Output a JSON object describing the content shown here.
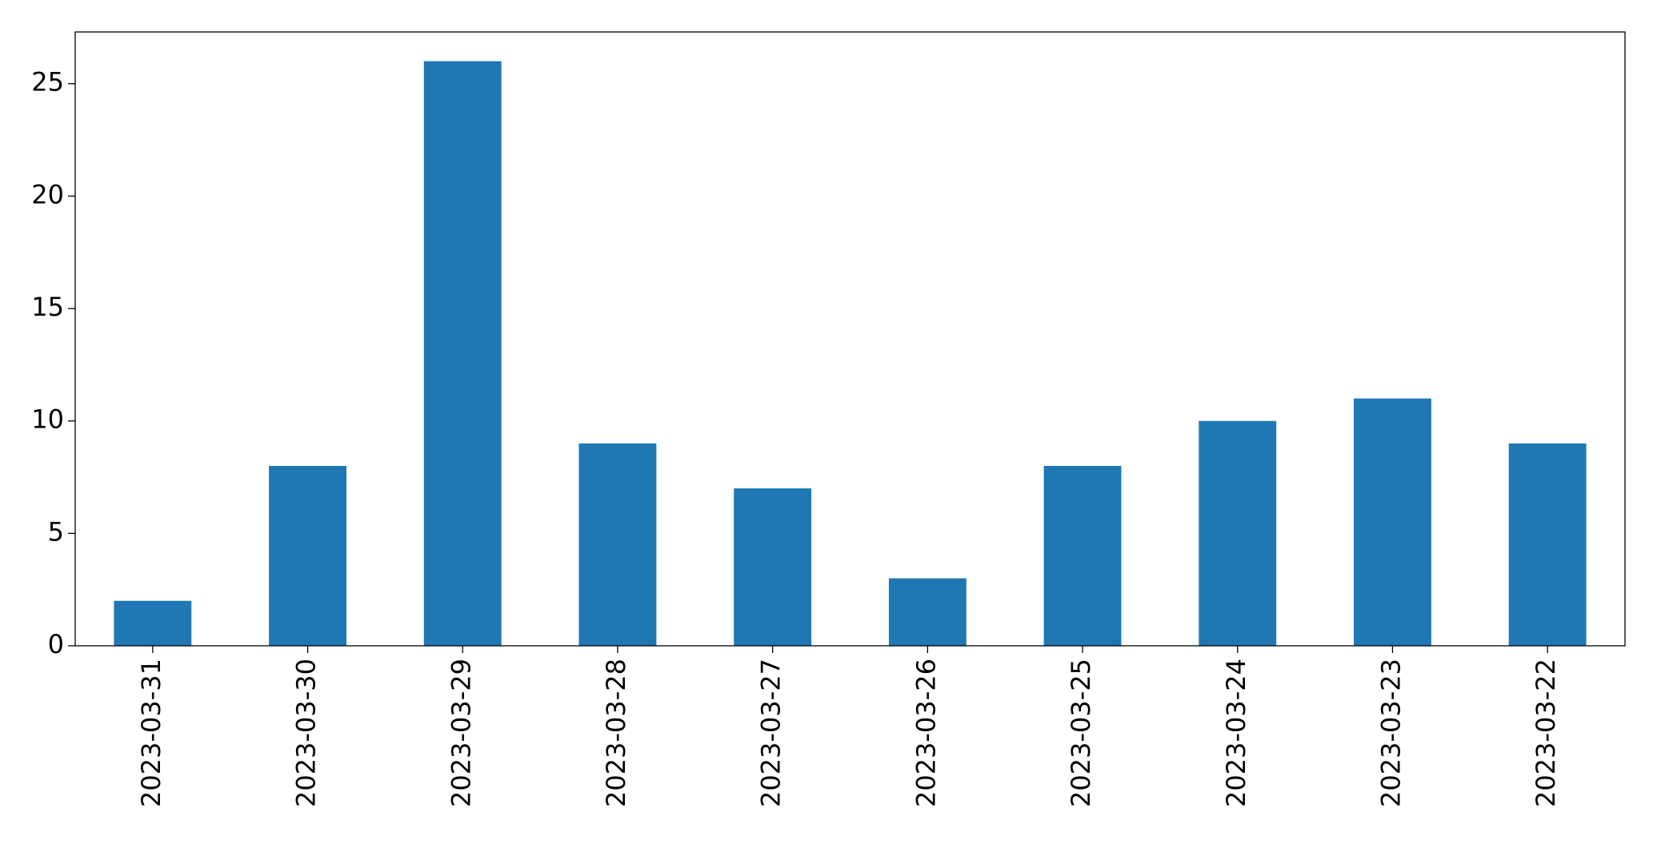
{
  "chart_data": {
    "type": "bar",
    "categories": [
      "2023-03-31",
      "2023-03-30",
      "2023-03-29",
      "2023-03-28",
      "2023-03-27",
      "2023-03-26",
      "2023-03-25",
      "2023-03-24",
      "2023-03-23",
      "2023-03-22"
    ],
    "values": [
      2,
      8,
      26,
      9,
      7,
      3,
      8,
      10,
      11,
      9
    ],
    "color": "#1f77b4",
    "ylim": [
      0,
      27.3
    ],
    "yticks": [
      0,
      5,
      10,
      15,
      20,
      25
    ],
    "grid": false
  }
}
